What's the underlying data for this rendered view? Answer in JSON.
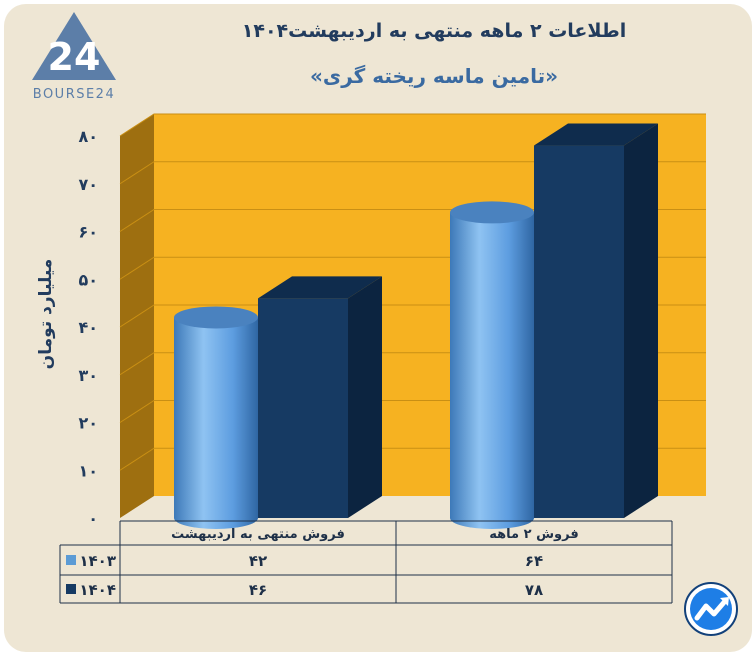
{
  "logo": {
    "text": "BOURSE24",
    "mark": "24"
  },
  "title": "اطلاعات ۲ ماهه منتهی به اردیبهشت۱۴۰۴",
  "subtitle": "«تامین ماسه ریخته گری»",
  "chart_data": {
    "type": "bar",
    "ylabel": "میلیارد تومان",
    "ylim": [
      0,
      80
    ],
    "yticks": [
      "۰",
      "۱۰",
      "۲۰",
      "۳۰",
      "۴۰",
      "۵۰",
      "۶۰",
      "۷۰",
      "۸۰"
    ],
    "categories": [
      "فروش منتهی به  اردیبهشت",
      "فروش ۲  ماهه"
    ],
    "series": [
      {
        "name": "۱۴۰۳",
        "values": [
          42,
          64
        ],
        "labels": [
          "۴۲",
          "۶۴"
        ],
        "color": "#5b9bd5"
      },
      {
        "name": "۱۴۰۴",
        "values": [
          46,
          78
        ],
        "labels": [
          "۴۶",
          "۷۸"
        ],
        "color": "#163a63"
      }
    ],
    "background": "#f6b221",
    "grid": true
  },
  "corner_icon": "trend-arrow-icon"
}
